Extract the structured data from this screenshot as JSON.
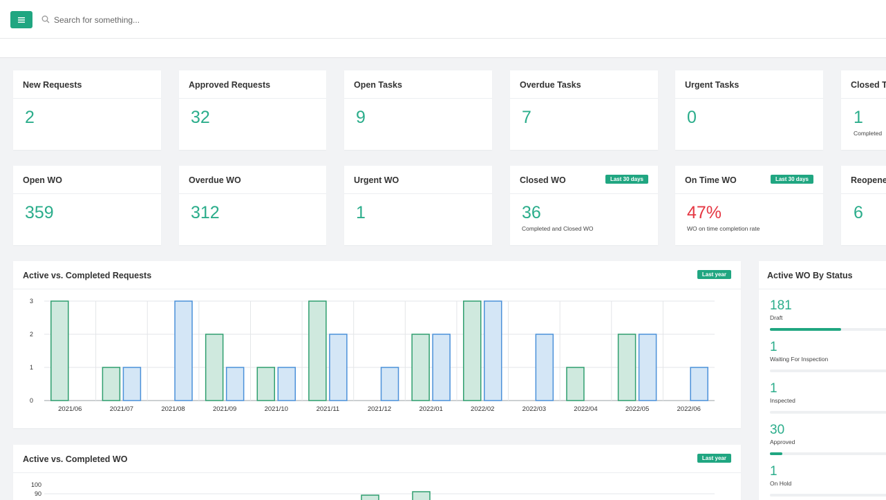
{
  "search": {
    "placeholder": "Search for something..."
  },
  "colors": {
    "accent": "#20a681",
    "value_green": "#2bad8b",
    "value_red": "#e53743",
    "bar_green": "#2e9e6e",
    "bar_blue": "#4a90d9"
  },
  "kpi_row1": [
    {
      "title": "New Requests",
      "value": "2",
      "sub": ""
    },
    {
      "title": "Approved Requests",
      "value": "32",
      "sub": ""
    },
    {
      "title": "Open Tasks",
      "value": "9",
      "sub": ""
    },
    {
      "title": "Overdue Tasks",
      "value": "7",
      "sub": ""
    },
    {
      "title": "Urgent Tasks",
      "value": "0",
      "sub": ""
    },
    {
      "title": "Closed T",
      "value": "1",
      "sub": "Completed"
    }
  ],
  "kpi_row2": [
    {
      "title": "Open WO",
      "value": "359",
      "sub": "",
      "badge": ""
    },
    {
      "title": "Overdue WO",
      "value": "312",
      "sub": "",
      "badge": ""
    },
    {
      "title": "Urgent WO",
      "value": "1",
      "sub": "",
      "badge": ""
    },
    {
      "title": "Closed WO",
      "value": "36",
      "sub": "Completed and Closed WO",
      "badge": "Last 30 days"
    },
    {
      "title": "On Time WO",
      "value": "47%",
      "sub": "WO on time completion rate",
      "badge": "Last 30 days"
    },
    {
      "title": "Reopene",
      "value": "6",
      "sub": "",
      "badge": ""
    }
  ],
  "requests_chart": {
    "title": "Active vs. Completed Requests",
    "badge": "Last year"
  },
  "wo_chart": {
    "title": "Active vs. Completed WO",
    "badge": "Last year"
  },
  "status_panel": {
    "title": "Active WO By Status",
    "items": [
      {
        "value": "181",
        "label": "Draft",
        "fill": 0.57
      },
      {
        "value": "1",
        "label": "Waiting For Inspection",
        "fill": 0
      },
      {
        "value": "1",
        "label": "Inspected",
        "fill": 0
      },
      {
        "value": "30",
        "label": "Approved",
        "fill": 0.1
      },
      {
        "value": "1",
        "label": "On Hold",
        "fill": 0
      }
    ]
  },
  "chart_data": [
    {
      "type": "bar",
      "title": "Active vs. Completed Requests",
      "categories": [
        "2021/06",
        "2021/07",
        "2021/08",
        "2021/09",
        "2021/10",
        "2021/11",
        "2021/12",
        "2022/01",
        "2022/02",
        "2022/03",
        "2022/04",
        "2022/05",
        "2022/06"
      ],
      "series": [
        {
          "values": [
            3,
            1,
            0,
            2,
            1,
            3,
            0,
            2,
            3,
            0,
            1,
            2,
            0
          ]
        },
        {
          "values": [
            0,
            1,
            3,
            1,
            1,
            2,
            1,
            2,
            3,
            2,
            0,
            2,
            1
          ]
        }
      ],
      "ylim": [
        0,
        3
      ],
      "yticks": [
        0,
        1,
        2,
        3
      ],
      "grid": true
    },
    {
      "type": "bar",
      "title": "Active vs. Completed WO",
      "yticks": [
        100,
        90
      ],
      "grid": true
    }
  ]
}
